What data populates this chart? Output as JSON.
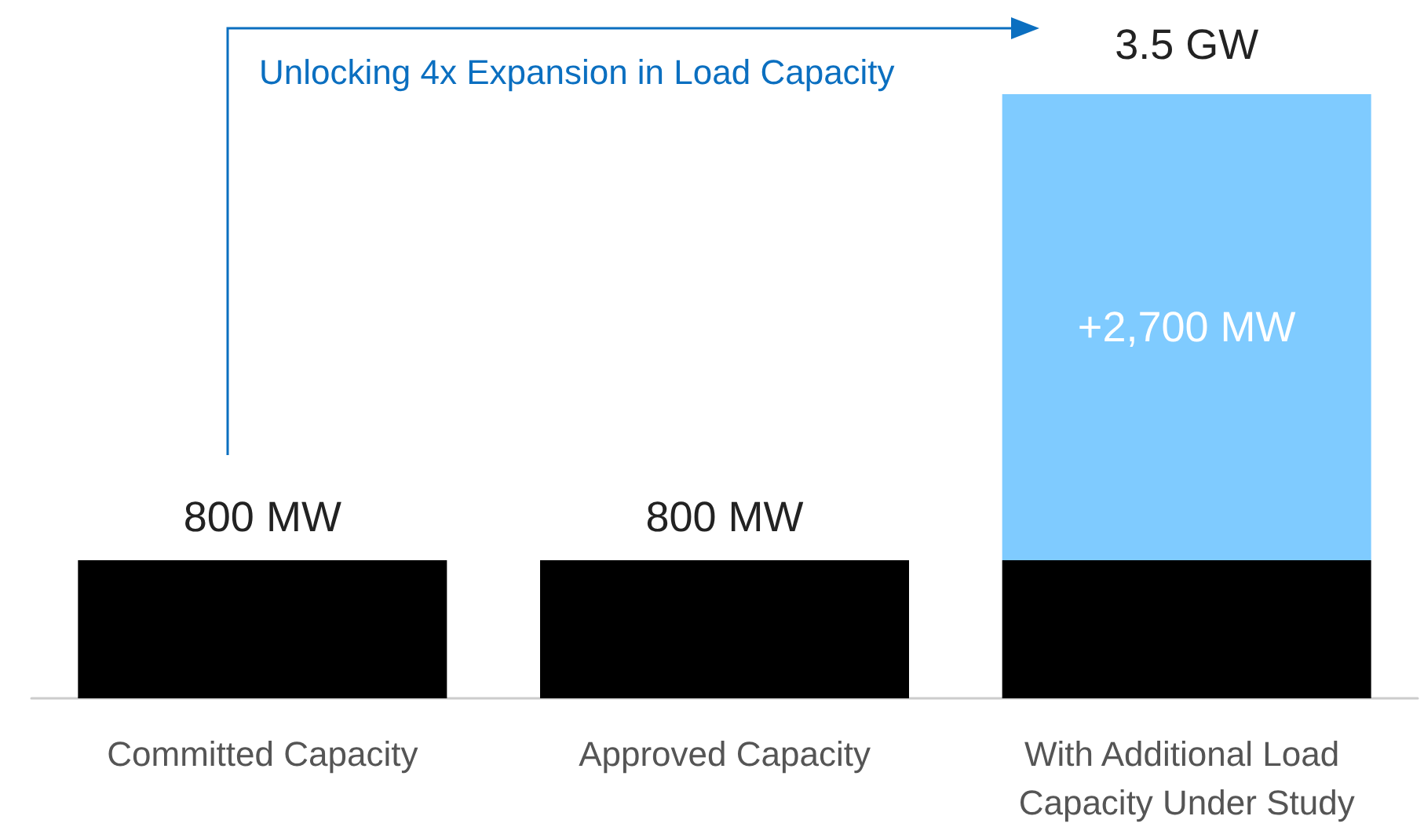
{
  "chart_data": {
    "type": "bar",
    "stacked": true,
    "categories": [
      "Committed Capacity",
      "Approved Capacity",
      "With Additional Load Capacity Under Study"
    ],
    "series": [
      {
        "color": "#000000",
        "values": [
          800,
          800,
          800
        ],
        "value_labels": [
          "800 MW",
          "800 MW",
          null
        ]
      },
      {
        "color": "#7fcbff",
        "values": [
          null,
          null,
          2700
        ],
        "value_labels": [
          null,
          null,
          "+2,700 MW"
        ]
      }
    ],
    "annotations": [
      {
        "text": "3.5 GW",
        "x": "With Additional Load Capacity Under Study",
        "y": 3500
      },
      "Unlocking 4x Expansion in Load Capacity"
    ],
    "grid": false
  }
}
